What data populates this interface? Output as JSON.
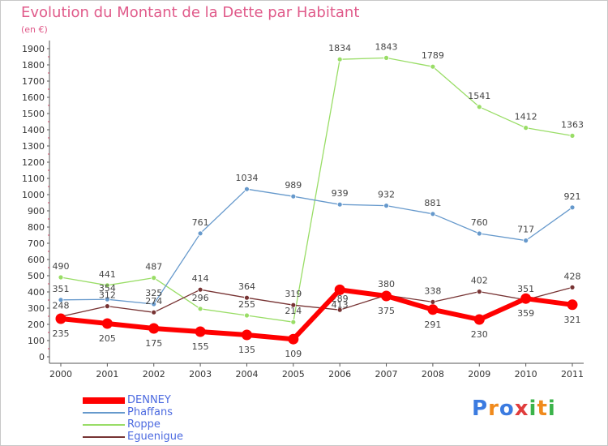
{
  "title": "Evolution du Montant de la Dette par Habitant",
  "subtitle": "(en €)",
  "logo": {
    "text": "Proxiti",
    "colors": [
      "#3b7be0",
      "#f08a1c",
      "#3b7be0",
      "#e03c3c",
      "#3bb34a",
      "#f08a1c",
      "#3bb34a"
    ]
  },
  "chart_data": {
    "type": "line",
    "x": [
      "2000",
      "2001",
      "2002",
      "2003",
      "2004",
      "2005",
      "2006",
      "2007",
      "2008",
      "2009",
      "2010",
      "2011"
    ],
    "ylim": [
      0,
      1900
    ],
    "yticks": [
      0,
      100,
      200,
      300,
      400,
      500,
      600,
      700,
      800,
      900,
      1000,
      1100,
      1200,
      1300,
      1400,
      1500,
      1600,
      1700,
      1800,
      1900
    ],
    "grid": false,
    "legend_position": "bottom-left",
    "series": [
      {
        "name": "Roppe",
        "color": "#99dd66",
        "values": [
          490,
          441,
          487,
          296,
          255,
          214,
          1834,
          1843,
          1789,
          1541,
          1412,
          1363
        ]
      },
      {
        "name": "Phaffans",
        "color": "#6699cc",
        "values": [
          351,
          354,
          325,
          761,
          1034,
          989,
          939,
          932,
          881,
          760,
          717,
          921
        ]
      },
      {
        "name": "Eguenigue",
        "color": "#773333",
        "values": [
          248,
          312,
          274,
          414,
          364,
          319,
          289,
          380,
          338,
          402,
          351,
          428
        ]
      },
      {
        "name": "DENNEY",
        "color": "#ff0000",
        "values": [
          235,
          205,
          175,
          155,
          135,
          109,
          413,
          375,
          291,
          230,
          359,
          321
        ]
      }
    ],
    "legend_order": [
      "DENNEY",
      "Phaffans",
      "Roppe",
      "Eguenigue"
    ]
  }
}
